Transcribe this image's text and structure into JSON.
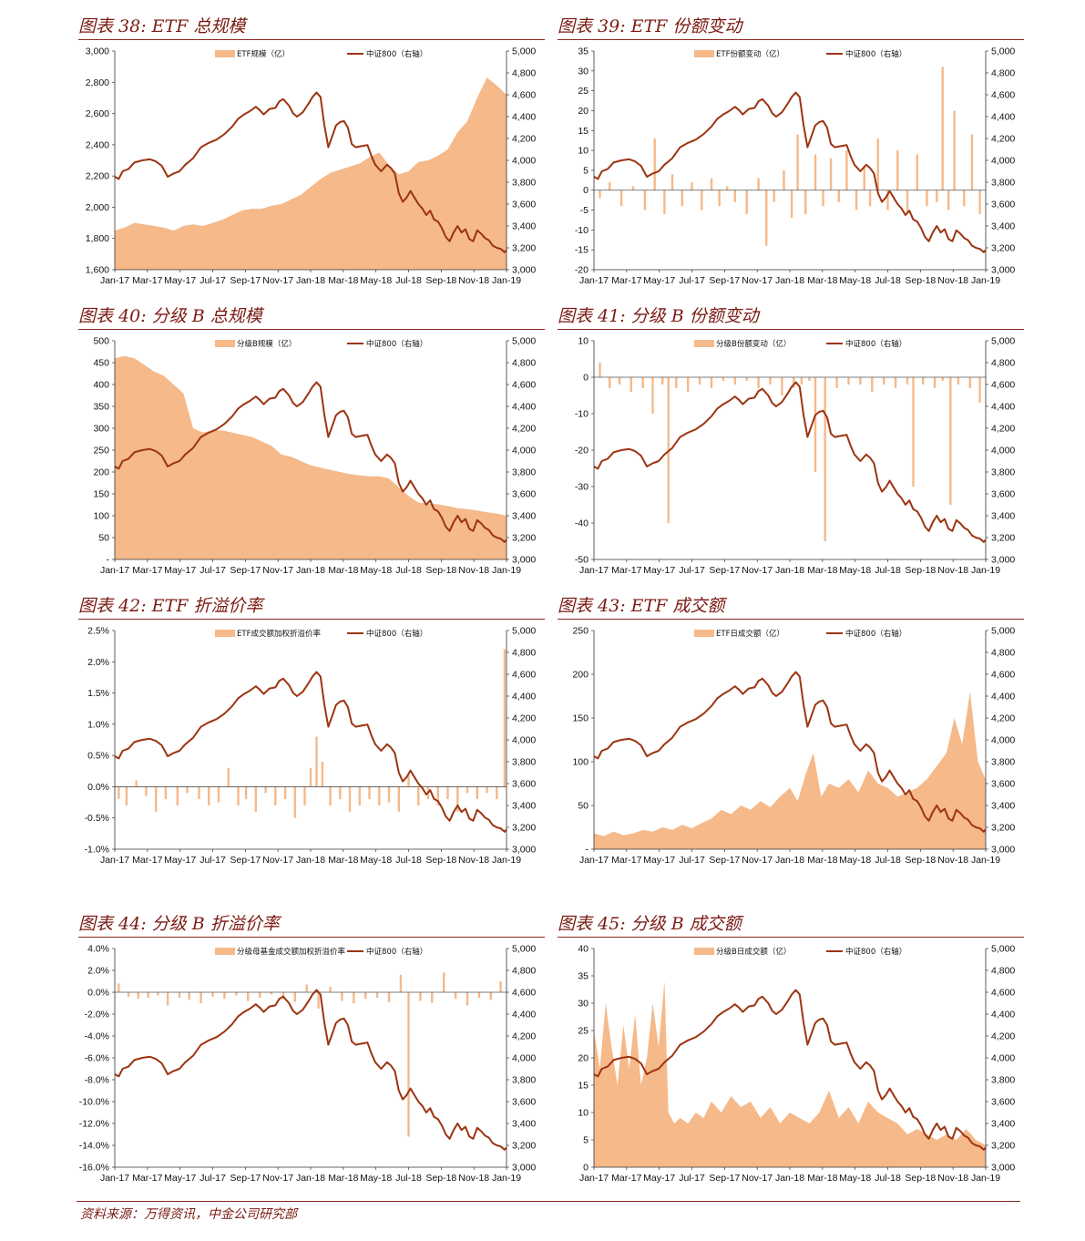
{
  "colors": {
    "area": "#f5b98a",
    "line": "#9c3410",
    "title": "#7b1a12",
    "rule": "#8b2a1f"
  },
  "source": "资料来源：万得资讯，中金公司研究部",
  "x_ticks": [
    "Jan-17",
    "Mar-17",
    "May-17",
    "Jul-17",
    "Sep-17",
    "Nov-17",
    "Jan-18",
    "Mar-18",
    "May-18",
    "Jul-18",
    "Sep-18",
    "Nov-18",
    "Jan-19"
  ],
  "csi800": {
    "name": "中证800（右轴）",
    "points": [
      [
        0,
        3850
      ],
      [
        2,
        3830
      ],
      [
        4,
        3900
      ],
      [
        7,
        3920
      ],
      [
        10,
        3980
      ],
      [
        14,
        4000
      ],
      [
        18,
        4010
      ],
      [
        21,
        3990
      ],
      [
        24,
        3950
      ],
      [
        27,
        3850
      ],
      [
        30,
        3880
      ],
      [
        33,
        3900
      ],
      [
        36,
        3960
      ],
      [
        40,
        4020
      ],
      [
        44,
        4120
      ],
      [
        48,
        4160
      ],
      [
        52,
        4190
      ],
      [
        56,
        4240
      ],
      [
        60,
        4310
      ],
      [
        63,
        4380
      ],
      [
        66,
        4420
      ],
      [
        69,
        4450
      ],
      [
        72,
        4490
      ],
      [
        74,
        4460
      ],
      [
        76,
        4420
      ],
      [
        79,
        4470
      ],
      [
        82,
        4480
      ],
      [
        84,
        4540
      ],
      [
        86,
        4560
      ],
      [
        89,
        4500
      ],
      [
        91,
        4430
      ],
      [
        93,
        4400
      ],
      [
        96,
        4440
      ],
      [
        99,
        4520
      ],
      [
        101,
        4580
      ],
      [
        103,
        4620
      ],
      [
        105,
        4580
      ],
      [
        107,
        4320
      ],
      [
        109,
        4120
      ],
      [
        111,
        4220
      ],
      [
        113,
        4320
      ],
      [
        115,
        4350
      ],
      [
        117,
        4360
      ],
      [
        119,
        4300
      ],
      [
        121,
        4150
      ],
      [
        123,
        4120
      ],
      [
        126,
        4130
      ],
      [
        129,
        4140
      ],
      [
        131,
        4040
      ],
      [
        133,
        3960
      ],
      [
        136,
        3900
      ],
      [
        139,
        3960
      ],
      [
        141,
        3930
      ],
      [
        143,
        3880
      ],
      [
        145,
        3700
      ],
      [
        147,
        3620
      ],
      [
        149,
        3660
      ],
      [
        151,
        3720
      ],
      [
        153,
        3660
      ],
      [
        155,
        3600
      ],
      [
        157,
        3560
      ],
      [
        159,
        3500
      ],
      [
        161,
        3540
      ],
      [
        163,
        3460
      ],
      [
        165,
        3440
      ],
      [
        167,
        3380
      ],
      [
        169,
        3300
      ],
      [
        171,
        3260
      ],
      [
        173,
        3340
      ],
      [
        175,
        3400
      ],
      [
        177,
        3340
      ],
      [
        179,
        3370
      ],
      [
        181,
        3280
      ],
      [
        183,
        3260
      ],
      [
        185,
        3360
      ],
      [
        187,
        3330
      ],
      [
        189,
        3290
      ],
      [
        191,
        3270
      ],
      [
        193,
        3220
      ],
      [
        195,
        3200
      ],
      [
        197,
        3190
      ],
      [
        199,
        3160
      ],
      [
        200,
        3180
      ]
    ]
  },
  "charts": [
    {
      "title": "图表 38: ETF 总规模",
      "legend_area": "ETF规模（亿）",
      "left_axis": [
        3000,
        2800,
        2600,
        2400,
        2200,
        2000,
        1800,
        1600
      ],
      "left_labels": [
        "3,000",
        "2,800",
        "2,600",
        "2,400",
        "2,200",
        "2,000",
        "1,800",
        "1,600"
      ],
      "chart_data": {
        "type": "area",
        "series_name": "ETF规模（亿）",
        "ylim": [
          1600,
          3000
        ],
        "x": [
          0,
          5,
          10,
          15,
          20,
          25,
          30,
          35,
          40,
          45,
          50,
          55,
          60,
          65,
          70,
          75,
          80,
          85,
          90,
          95,
          100,
          105,
          110,
          115,
          120,
          125,
          130,
          135,
          140,
          145,
          150,
          155,
          160,
          165,
          170,
          175,
          180,
          185,
          190,
          195,
          200
        ],
        "values": [
          1850,
          1870,
          1900,
          1890,
          1880,
          1870,
          1850,
          1880,
          1890,
          1880,
          1900,
          1920,
          1950,
          1980,
          1990,
          1990,
          2010,
          2020,
          2050,
          2080,
          2130,
          2180,
          2220,
          2240,
          2260,
          2280,
          2320,
          2350,
          2270,
          2210,
          2230,
          2290,
          2300,
          2330,
          2370,
          2480,
          2550,
          2700,
          2830,
          2780,
          2720
        ]
      }
    },
    {
      "title": "图表 39: ETF 份额变动",
      "legend_area": "ETF份额变动（亿）",
      "left_axis": [
        35,
        30,
        25,
        20,
        15,
        10,
        5,
        0,
        -5,
        -10,
        -15,
        -20
      ],
      "left_labels": [
        "35",
        "30",
        "25",
        "20",
        "15",
        "10",
        "5",
        "0",
        "-5",
        "-10",
        "-15",
        "-20"
      ],
      "chart_data": {
        "type": "bar",
        "series_name": "ETF份额变动（亿）",
        "ylim": [
          -20,
          35
        ],
        "x": [
          3,
          8,
          14,
          20,
          26,
          31,
          36,
          40,
          45,
          50,
          55,
          60,
          64,
          68,
          72,
          78,
          84,
          88,
          92,
          97,
          101,
          104,
          108,
          113,
          117,
          121,
          125,
          129,
          134,
          138,
          141,
          145,
          150,
          155,
          160,
          165,
          170,
          175,
          178,
          181,
          184,
          189,
          193,
          197
        ],
        "values": [
          -2,
          2,
          -4,
          1,
          -5,
          13,
          -6,
          4,
          -4,
          2,
          -5,
          3,
          -4,
          1,
          -3,
          -6,
          3,
          -14,
          -3,
          5,
          -7,
          14,
          -6,
          9,
          -4,
          8,
          -3,
          10,
          -5,
          6,
          -4,
          13,
          -5,
          10,
          -6,
          9,
          -4,
          -3,
          31,
          -5,
          20,
          -4,
          14,
          -6
        ]
      }
    },
    {
      "title": "图表 40:  分级 B 总规模",
      "legend_area": "分级B规模（亿）",
      "left_axis": [
        500,
        450,
        400,
        350,
        300,
        250,
        200,
        150,
        100,
        50,
        0
      ],
      "left_labels": [
        "500",
        "450",
        "400",
        "350",
        "300",
        "250",
        "200",
        "150",
        "100",
        "50",
        "-"
      ],
      "chart_data": {
        "type": "area",
        "series_name": "分级B规模（亿）",
        "ylim": [
          0,
          500
        ],
        "x": [
          0,
          5,
          10,
          15,
          20,
          25,
          30,
          35,
          40,
          45,
          50,
          55,
          60,
          65,
          70,
          75,
          80,
          85,
          90,
          95,
          100,
          105,
          110,
          115,
          120,
          125,
          130,
          135,
          140,
          145,
          150,
          155,
          160,
          165,
          170,
          175,
          180,
          185,
          190,
          195,
          200
        ],
        "values": [
          460,
          465,
          460,
          445,
          430,
          420,
          400,
          380,
          300,
          290,
          295,
          295,
          290,
          285,
          280,
          270,
          260,
          240,
          235,
          225,
          215,
          210,
          205,
          200,
          195,
          192,
          190,
          190,
          185,
          165,
          145,
          130,
          128,
          126,
          122,
          117,
          115,
          112,
          108,
          105,
          100
        ]
      }
    },
    {
      "title": "图表 41:  分级 B 份额变动",
      "legend_area": "分级B份额变动（亿）",
      "left_axis": [
        10,
        0,
        -10,
        -20,
        -30,
        -40,
        -50
      ],
      "left_labels": [
        "10",
        "0",
        "-10",
        "-20",
        "-30",
        "-40",
        "-50"
      ],
      "chart_data": {
        "type": "bar",
        "series_name": "分级B份额变动（亿）",
        "ylim": [
          -50,
          10
        ],
        "x": [
          3,
          8,
          13,
          19,
          25,
          30,
          35,
          38,
          42,
          48,
          54,
          60,
          66,
          72,
          78,
          84,
          90,
          96,
          102,
          106,
          110,
          113,
          118,
          124,
          130,
          136,
          142,
          148,
          154,
          160,
          163,
          168,
          174,
          178,
          182,
          186,
          192,
          197
        ],
        "values": [
          4,
          -3,
          -2,
          -4,
          -3,
          -10,
          -2,
          -40,
          -3,
          -4,
          -2,
          -3,
          -1,
          -2,
          -1,
          -3,
          -2,
          -5,
          -3,
          -2,
          -1,
          -26,
          -45,
          -3,
          -2,
          -2,
          -4,
          -2,
          -3,
          -2,
          -30,
          -2,
          -3,
          -1,
          -35,
          -2,
          -3,
          -7
        ]
      }
    },
    {
      "title": "图表 42: ETF 折溢价率",
      "legend_area": "ETF成交额加权折溢价率",
      "left_axis": [
        2.5,
        2.0,
        1.5,
        1.0,
        0.5,
        0.0,
        -0.5,
        -1.0
      ],
      "left_labels": [
        "2.5%",
        "2.0%",
        "1.5%",
        "1.0%",
        "0.5%",
        "0.0%",
        "-0.5%",
        "-1.0%"
      ],
      "chart_data": {
        "type": "bar",
        "series_name": "ETF成交额加权折溢价率",
        "ylim": [
          -1.0,
          2.5
        ],
        "x": [
          2,
          6,
          11,
          16,
          21,
          26,
          32,
          37,
          43,
          48,
          53,
          58,
          63,
          67,
          72,
          77,
          82,
          87,
          92,
          97,
          100,
          103,
          106,
          110,
          115,
          120,
          125,
          130,
          135,
          140,
          145,
          150,
          155,
          160,
          165,
          170,
          175,
          180,
          185,
          190,
          195,
          199
        ],
        "values": [
          -0.2,
          -0.3,
          0.1,
          -0.15,
          -0.4,
          -0.2,
          -0.3,
          -0.1,
          -0.2,
          -0.3,
          -0.25,
          0.3,
          -0.3,
          -0.2,
          -0.4,
          -0.1,
          -0.3,
          -0.2,
          -0.5,
          -0.3,
          0.3,
          0.8,
          0.4,
          -0.3,
          -0.2,
          -0.4,
          -0.3,
          -0.2,
          -0.3,
          -0.25,
          -0.4,
          0.2,
          -0.3,
          -0.2,
          -0.3,
          -0.2,
          -0.4,
          -0.1,
          -0.2,
          -0.1,
          -0.2,
          2.2
        ]
      }
    },
    {
      "title": "图表 43: ETF 成交额",
      "legend_area": "ETF日成交额（亿）",
      "left_axis": [
        250,
        200,
        150,
        100,
        50,
        0
      ],
      "left_labels": [
        "250",
        "200",
        "150",
        "100",
        "50",
        "-"
      ],
      "chart_data": {
        "type": "area",
        "series_name": "ETF日成交额（亿）",
        "ylim": [
          0,
          250
        ],
        "x": [
          0,
          5,
          10,
          15,
          20,
          25,
          30,
          35,
          40,
          45,
          50,
          55,
          60,
          65,
          70,
          75,
          80,
          85,
          90,
          95,
          100,
          104,
          108,
          112,
          116,
          120,
          125,
          130,
          135,
          140,
          145,
          150,
          155,
          160,
          165,
          170,
          175,
          180,
          184,
          188,
          192,
          196,
          200
        ],
        "values": [
          18,
          15,
          20,
          16,
          18,
          22,
          20,
          25,
          22,
          28,
          24,
          30,
          35,
          45,
          40,
          50,
          45,
          55,
          48,
          60,
          70,
          55,
          85,
          110,
          60,
          75,
          70,
          80,
          65,
          90,
          75,
          70,
          60,
          65,
          70,
          80,
          95,
          110,
          150,
          120,
          180,
          100,
          80
        ]
      }
    },
    {
      "title": "图表 44:  分级 B 折溢价率",
      "legend_area": "分级母基金成交额加权折溢价率",
      "left_axis": [
        4,
        2,
        0,
        -2,
        -4,
        -6,
        -8,
        -10,
        -12,
        -14,
        -16
      ],
      "left_labels": [
        "4.0%",
        "2.0%",
        "0.0%",
        "-2.0%",
        "-4.0%",
        "-6.0%",
        "-8.0%",
        "-10.0%",
        "-12.0%",
        "-14.0%",
        "-16.0%"
      ],
      "chart_data": {
        "type": "bar",
        "series_name": "分级母基金成交额加权折溢价率",
        "ylim": [
          -16,
          4
        ],
        "x": [
          2,
          7,
          12,
          17,
          22,
          27,
          33,
          38,
          44,
          50,
          56,
          62,
          68,
          74,
          80,
          86,
          92,
          98,
          104,
          110,
          116,
          122,
          128,
          134,
          140,
          146,
          150,
          156,
          162,
          168,
          174,
          180,
          186,
          192,
          197
        ],
        "values": [
          0.8,
          -0.4,
          -0.6,
          -0.5,
          -0.3,
          -1.2,
          -0.5,
          -0.7,
          -1.0,
          -0.4,
          -0.6,
          -0.3,
          -0.8,
          -0.5,
          -0.2,
          -0.6,
          -0.9,
          0.7,
          -1.5,
          0.5,
          -0.8,
          -1.0,
          -0.6,
          -0.5,
          -0.9,
          1.6,
          -13.2,
          -0.8,
          -1.0,
          1.8,
          -0.6,
          -1.2,
          -0.5,
          -0.7,
          1.0
        ]
      }
    },
    {
      "title": "图表 45:  分级 B 成交额",
      "legend_area": "分级B日成交额（亿）",
      "left_axis": [
        40,
        35,
        30,
        25,
        20,
        15,
        10,
        5,
        0
      ],
      "left_labels": [
        "40",
        "35",
        "30",
        "25",
        "20",
        "15",
        "10",
        "5",
        "0"
      ],
      "chart_data": {
        "type": "area",
        "series_name": "分级B日成交额（亿）",
        "ylim": [
          0,
          40
        ],
        "x": [
          0,
          3,
          6,
          9,
          12,
          15,
          18,
          21,
          24,
          27,
          30,
          33,
          36,
          38,
          41,
          44,
          48,
          52,
          56,
          60,
          65,
          70,
          75,
          80,
          85,
          90,
          95,
          100,
          105,
          110,
          115,
          120,
          125,
          130,
          135,
          140,
          145,
          150,
          155,
          160,
          165,
          170,
          175,
          180,
          185,
          190,
          195,
          200
        ],
        "values": [
          25,
          18,
          30,
          22,
          15,
          26,
          18,
          28,
          15,
          20,
          30,
          22,
          34,
          10,
          8,
          9,
          8,
          10,
          9,
          12,
          10,
          13,
          11,
          12,
          9,
          11,
          8,
          10,
          9,
          8,
          10,
          14,
          9,
          11,
          8,
          12,
          10,
          9,
          8,
          6,
          7,
          6,
          5,
          6,
          5,
          7,
          5,
          4
        ]
      }
    }
  ]
}
